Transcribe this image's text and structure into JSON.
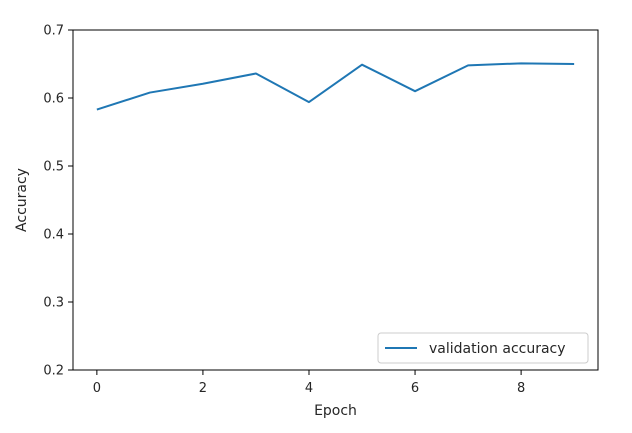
{
  "chart_data": {
    "type": "line",
    "title": "",
    "xlabel": "Epoch",
    "ylabel": "Accuracy",
    "xlim": [
      -0.45,
      9.45
    ],
    "ylim": [
      0.2,
      0.7
    ],
    "xticks": [
      0,
      2,
      4,
      6,
      8
    ],
    "yticks": [
      0.2,
      0.3,
      0.4,
      0.5,
      0.6,
      0.7
    ],
    "grid": false,
    "legend_location": "lower-right",
    "series": [
      {
        "name": "validation accuracy",
        "color": "#1f77b4",
        "x": [
          0,
          1,
          2,
          3,
          4,
          5,
          6,
          7,
          8,
          9
        ],
        "y": [
          0.583,
          0.608,
          0.621,
          0.636,
          0.594,
          0.649,
          0.61,
          0.648,
          0.651,
          0.65
        ]
      }
    ]
  }
}
